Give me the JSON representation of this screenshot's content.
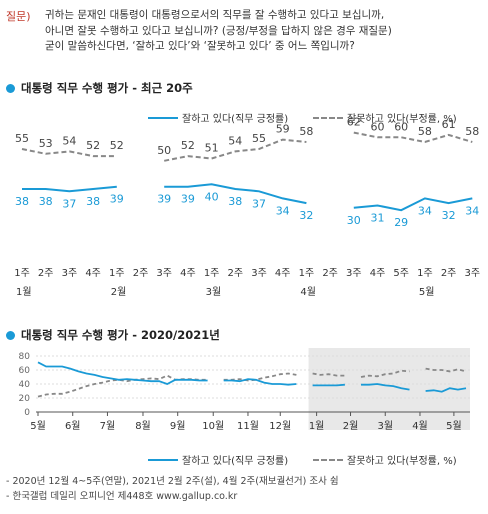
{
  "question": {
    "label": "질문)",
    "lines": [
      "귀하는 문재인 대통령이 대통령으로서의 직무를 잘 수행하고 있다고 보십니까,",
      "아니면 잘못 수행하고 있다고 보십니까? (긍정/부정을 답하지 않은 경우 재질문)",
      "굳이 말씀하신다면, ‘잘하고 있다’와 ‘잘못하고 있다’ 중 어느 쪽입니까?"
    ]
  },
  "colors": {
    "approve": "#1a9ad6",
    "disapprove": "#888888",
    "shade": "#e8e8e8",
    "accent": "#1a9ad6"
  },
  "section1": {
    "title": "대통령 직무 수행 평가 - 최근 20주"
  },
  "section2": {
    "title": "대통령 직무 수행 평가 - 2020/2021년"
  },
  "legend1": {
    "approve": "잘하고 있다(직무 긍정률)",
    "disapprove": "잘못하고 있다(부정률, %)"
  },
  "legend2": {
    "approve": "잘하고 있다(직무 긍정률)",
    "disapprove": "잘못하고 있다(부정률, %)"
  },
  "notes": [
    "- 2020년 12월 4~5주(연말), 2021년 2월 2주(설), 4월 2주(재보궐선거) 조사 쉼",
    "- 한국갤럽 데일리 오피니언 제448호 www.gallup.co.kr"
  ],
  "chart_data": [
    {
      "type": "line",
      "categories": [
        "1주",
        "2주",
        "3주",
        "4주",
        "1주",
        "2주",
        "3주",
        "4주",
        "1주",
        "2주",
        "3주",
        "4주",
        "1주",
        "2주",
        "3주",
        "4주",
        "5주",
        "1주",
        "2주",
        "3주"
      ],
      "month_labels": [
        {
          "index": 0,
          "label": "1월"
        },
        {
          "index": 4,
          "label": "2월"
        },
        {
          "index": 8,
          "label": "3월"
        },
        {
          "index": 12,
          "label": "4월"
        },
        {
          "index": 17,
          "label": "5월"
        }
      ],
      "series": [
        {
          "name": "잘하고 있다(직무 긍정률)",
          "values": [
            38,
            38,
            37,
            38,
            39,
            null,
            39,
            39,
            40,
            38,
            37,
            34,
            32,
            null,
            30,
            31,
            29,
            34,
            32,
            34
          ]
        },
        {
          "name": "잘못하고 있다(부정률, %)",
          "values": [
            55,
            53,
            54,
            52,
            52,
            null,
            50,
            52,
            51,
            54,
            55,
            59,
            58,
            null,
            62,
            60,
            60,
            58,
            61,
            58
          ]
        }
      ]
    },
    {
      "type": "line",
      "month_ticks": [
        "5월",
        "6월",
        "7월",
        "8월",
        "9월",
        "10월",
        "11월",
        "12월",
        "1월",
        "2월",
        "3월",
        "4월",
        "5월"
      ],
      "ylim": [
        0,
        80
      ],
      "yticks": [
        0,
        20,
        40,
        60,
        80
      ],
      "series": [
        {
          "name": "잘하고 있다(직무 긍정률)",
          "values": [
            71,
            65,
            65,
            65,
            62,
            58,
            55,
            53,
            50,
            48,
            46,
            47,
            46,
            45,
            44,
            44,
            40,
            46,
            46,
            46,
            45,
            45,
            null,
            45,
            45,
            44,
            47,
            46,
            42,
            40,
            40,
            39,
            40,
            null,
            38,
            38,
            38,
            38,
            39,
            null,
            39,
            39,
            40,
            38,
            37,
            34,
            32,
            null,
            30,
            31,
            29,
            34,
            32,
            34
          ]
        },
        {
          "name": "잘못하고 있다(부정률, %)",
          "values": [
            22,
            25,
            26,
            26,
            29,
            33,
            37,
            40,
            42,
            45,
            46,
            44,
            46,
            47,
            48,
            47,
            52,
            46,
            47,
            47,
            46,
            46,
            null,
            46,
            46,
            47,
            45,
            46,
            49,
            51,
            54,
            55,
            53,
            null,
            55,
            53,
            54,
            52,
            52,
            null,
            50,
            52,
            51,
            54,
            55,
            59,
            58,
            null,
            62,
            60,
            60,
            58,
            61,
            58
          ]
        }
      ]
    }
  ]
}
